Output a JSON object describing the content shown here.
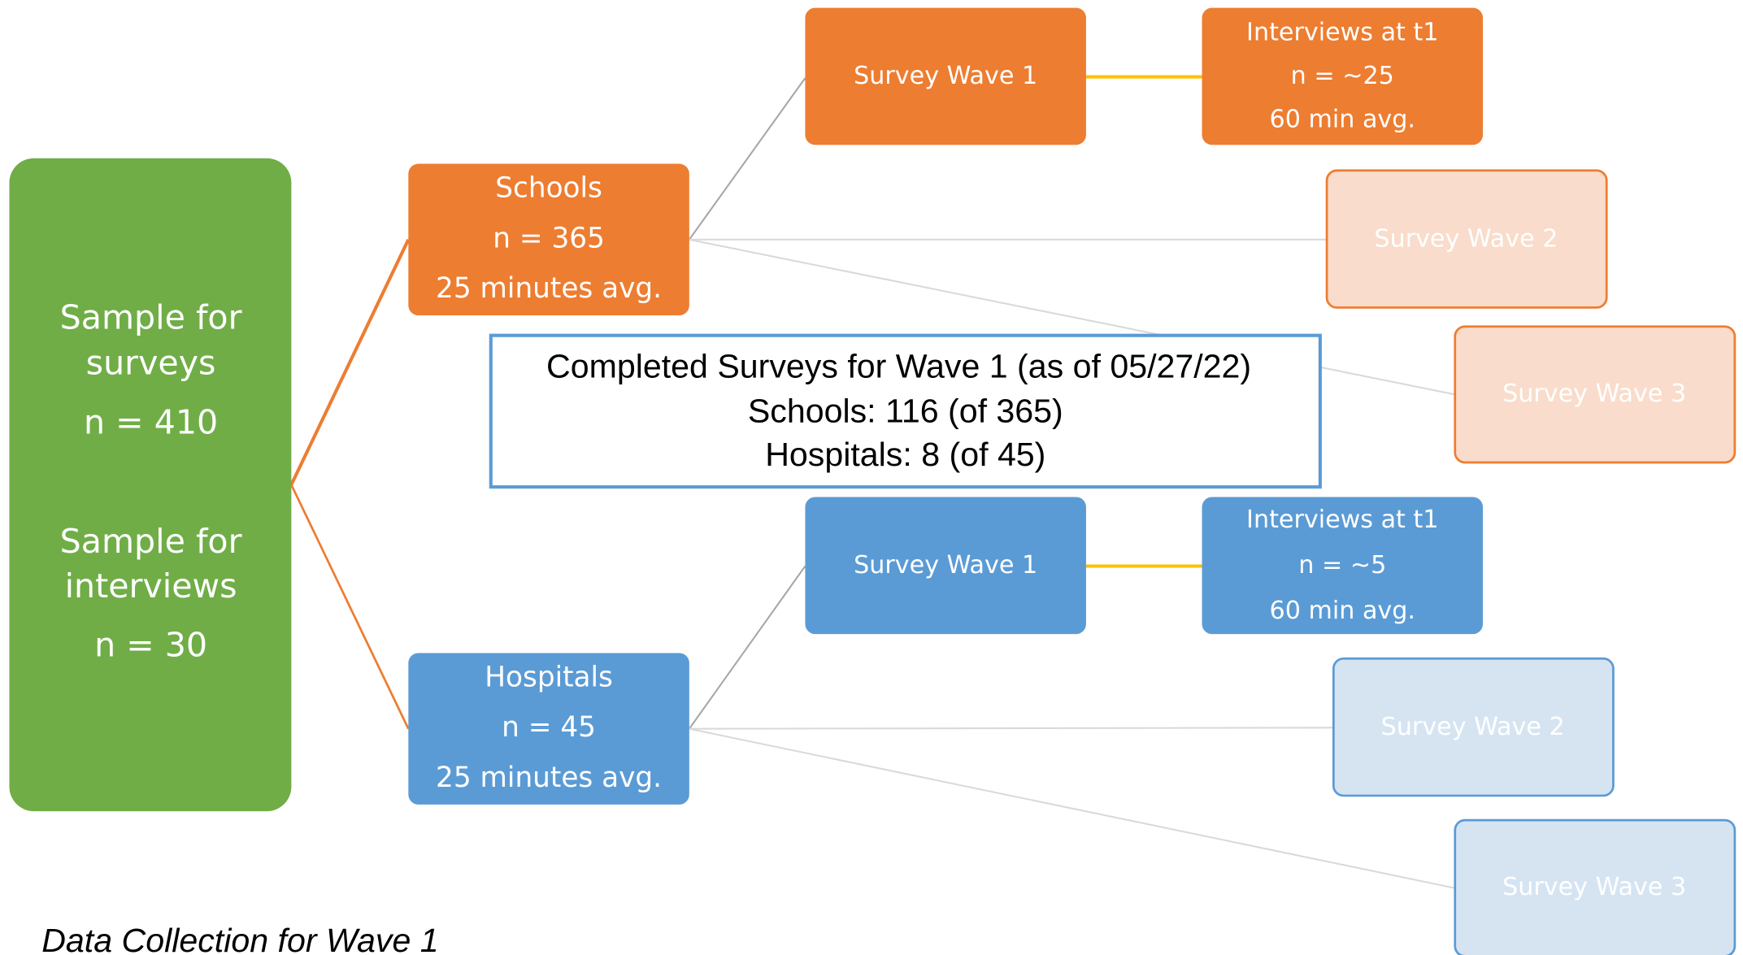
{
  "nodes": [
    {
      "label": [
        "Sample for",
        "surveys",
        "n = 410",
        "Sample for",
        "interviews",
        "n = 30"
      ]
    },
    {
      "label": [
        "Schools",
        "n = 365",
        "25 minutes avg."
      ]
    },
    {
      "label": [
        "Hospitals",
        "n = 45",
        "25 minutes avg."
      ]
    },
    {
      "label": [
        "Survey Wave 1"
      ]
    },
    {
      "label": [
        "Interviews at t1",
        "n = ~25",
        "60 min avg."
      ]
    },
    {
      "label": [
        "Survey Wave 2"
      ]
    },
    {
      "label": [
        "Survey Wave 3"
      ]
    },
    {
      "label": [
        "Survey Wave 1"
      ]
    },
    {
      "label": [
        "Interviews at t1",
        "n = ~5",
        "60 min avg."
      ]
    },
    {
      "label": [
        "Survey Wave 2"
      ]
    },
    {
      "label": [
        "Survey Wave 3"
      ]
    }
  ],
  "summary": {
    "lines": [
      "Completed Surveys for Wave 1 (as of 05/27/22)",
      "Schools: 116 (of 365)",
      "Hospitals: 8 (of 45)"
    ]
  },
  "caption": "Data Collection for Wave 1"
}
